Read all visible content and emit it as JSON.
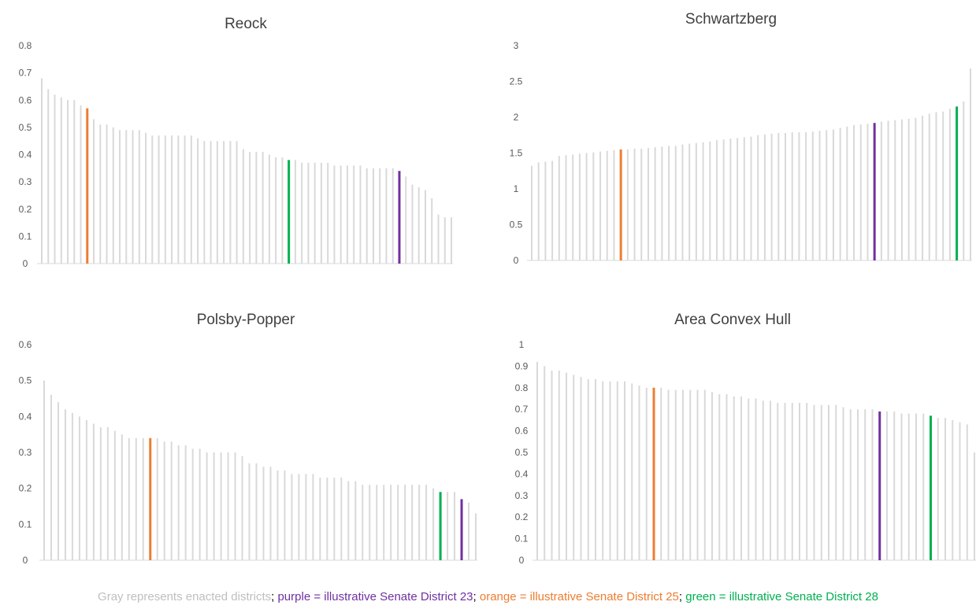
{
  "colors": {
    "gray": "#d9d9d9",
    "purple": "#7030a0",
    "orange": "#ed7d31",
    "green": "#00b050",
    "axis_text": "#595959",
    "title_text": "#404040",
    "caption_gray": "#bfbfbf"
  },
  "caption": {
    "gray_text": "Gray represents enacted districts",
    "sep1": "; ",
    "purple_text": "purple = illustrative Senate District 23",
    "sep2": "; ",
    "orange_text": "orange = illustrative Senate District 25",
    "sep3": "; ",
    "green_text": "green = illustrative Senate District 28"
  },
  "chart_data": [
    {
      "type": "bar",
      "title": "Reock",
      "ylim": [
        0,
        0.8
      ],
      "yticks": [
        "0",
        "0.1",
        "0.2",
        "0.3",
        "0.4",
        "0.5",
        "0.6",
        "0.7",
        "0.8"
      ],
      "values": [
        0.68,
        0.64,
        0.62,
        0.61,
        0.6,
        0.6,
        0.58,
        0.57,
        0.53,
        0.51,
        0.51,
        0.5,
        0.49,
        0.49,
        0.49,
        0.49,
        0.48,
        0.47,
        0.47,
        0.47,
        0.47,
        0.47,
        0.47,
        0.47,
        0.46,
        0.45,
        0.45,
        0.45,
        0.45,
        0.45,
        0.45,
        0.42,
        0.41,
        0.41,
        0.41,
        0.4,
        0.39,
        0.39,
        0.38,
        0.38,
        0.37,
        0.37,
        0.37,
        0.37,
        0.37,
        0.36,
        0.36,
        0.36,
        0.36,
        0.36,
        0.35,
        0.35,
        0.35,
        0.35,
        0.35,
        0.34,
        0.32,
        0.29,
        0.28,
        0.27,
        0.24,
        0.18,
        0.17,
        0.17
      ],
      "highlights": {
        "orange": 7,
        "green": 38,
        "purple": 55
      }
    },
    {
      "type": "bar",
      "title": "Schwartzberg",
      "ylim": [
        0,
        3
      ],
      "yticks": [
        "0",
        "0.5",
        "1",
        "1.5",
        "2",
        "2.5",
        "3"
      ],
      "values": [
        1.32,
        1.37,
        1.38,
        1.39,
        1.46,
        1.47,
        1.48,
        1.49,
        1.5,
        1.51,
        1.52,
        1.53,
        1.54,
        1.55,
        1.55,
        1.56,
        1.56,
        1.57,
        1.58,
        1.59,
        1.6,
        1.6,
        1.62,
        1.63,
        1.64,
        1.65,
        1.66,
        1.68,
        1.69,
        1.7,
        1.71,
        1.72,
        1.73,
        1.75,
        1.76,
        1.77,
        1.78,
        1.78,
        1.79,
        1.79,
        1.79,
        1.8,
        1.81,
        1.82,
        1.83,
        1.85,
        1.87,
        1.89,
        1.9,
        1.91,
        1.92,
        1.94,
        1.95,
        1.96,
        1.97,
        1.98,
        1.99,
        2.02,
        2.05,
        2.07,
        2.08,
        2.12,
        2.15,
        2.22,
        2.68
      ],
      "highlights": {
        "orange": 13,
        "purple": 50,
        "green": 62
      }
    },
    {
      "type": "bar",
      "title": "Polsby-Popper",
      "ylim": [
        0,
        0.6
      ],
      "yticks": [
        "0",
        "0.1",
        "0.2",
        "0.3",
        "0.4",
        "0.5",
        "0.6"
      ],
      "values": [
        0.5,
        0.46,
        0.44,
        0.42,
        0.41,
        0.4,
        0.39,
        0.38,
        0.37,
        0.37,
        0.36,
        0.35,
        0.34,
        0.34,
        0.34,
        0.34,
        0.34,
        0.33,
        0.33,
        0.32,
        0.32,
        0.31,
        0.31,
        0.3,
        0.3,
        0.3,
        0.3,
        0.3,
        0.29,
        0.27,
        0.27,
        0.26,
        0.26,
        0.25,
        0.25,
        0.24,
        0.24,
        0.24,
        0.24,
        0.23,
        0.23,
        0.23,
        0.23,
        0.22,
        0.22,
        0.21,
        0.21,
        0.21,
        0.21,
        0.21,
        0.21,
        0.21,
        0.21,
        0.21,
        0.21,
        0.2,
        0.19,
        0.19,
        0.19,
        0.17,
        0.16,
        0.13
      ],
      "highlights": {
        "orange": 15,
        "green": 56,
        "purple": 59
      }
    },
    {
      "type": "bar",
      "title": "Area Convex Hull",
      "ylim": [
        0,
        1
      ],
      "yticks": [
        "0",
        "0.1",
        "0.2",
        "0.3",
        "0.4",
        "0.5",
        "0.6",
        "0.7",
        "0.8",
        "0.9",
        "1"
      ],
      "values": [
        0.92,
        0.9,
        0.88,
        0.88,
        0.87,
        0.86,
        0.85,
        0.84,
        0.84,
        0.83,
        0.83,
        0.83,
        0.83,
        0.82,
        0.81,
        0.8,
        0.8,
        0.8,
        0.79,
        0.79,
        0.79,
        0.79,
        0.79,
        0.79,
        0.78,
        0.77,
        0.77,
        0.76,
        0.76,
        0.75,
        0.75,
        0.74,
        0.74,
        0.73,
        0.73,
        0.73,
        0.73,
        0.73,
        0.72,
        0.72,
        0.72,
        0.72,
        0.71,
        0.7,
        0.7,
        0.7,
        0.7,
        0.69,
        0.69,
        0.69,
        0.68,
        0.68,
        0.68,
        0.68,
        0.67,
        0.66,
        0.66,
        0.65,
        0.64,
        0.63,
        0.5
      ],
      "highlights": {
        "orange": 16,
        "purple": 47,
        "green": 54
      }
    }
  ]
}
